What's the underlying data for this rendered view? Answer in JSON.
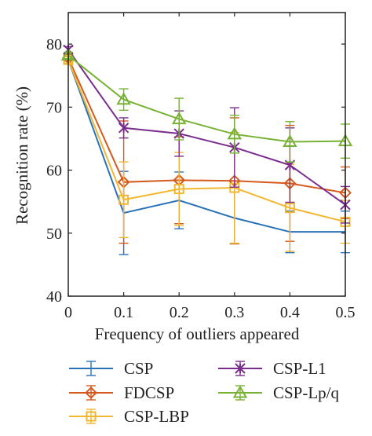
{
  "chart_data": {
    "type": "line",
    "xlabel": "Frequency of outliers appeared",
    "ylabel": "Recognition rate (%)",
    "xlim": [
      0,
      0.5
    ],
    "ylim": [
      40,
      85
    ],
    "x_ticks": [
      "0",
      "0.1",
      "0.2",
      "0.3",
      "0.4",
      "0.5"
    ],
    "y_ticks": [
      "40",
      "50",
      "60",
      "70",
      "80"
    ],
    "x": [
      0,
      0.1,
      0.2,
      0.3,
      0.4,
      0.5
    ],
    "grid": false,
    "legend_position": "bottom",
    "series": [
      {
        "name": "CSP",
        "color": "#2a72b8",
        "marker": "none",
        "values": [
          77.5,
          53.2,
          55.2,
          52.4,
          50.2,
          50.2
        ],
        "error": [
          0.5,
          6.6,
          4.5,
          4.1,
          3.3,
          3.3
        ]
      },
      {
        "name": "FDCSP",
        "color": "#d45a1e",
        "marker": "diamond",
        "values": [
          77.8,
          58.1,
          58.4,
          58.3,
          57.9,
          56.4
        ],
        "error": [
          0.5,
          9.7,
          6.9,
          10.0,
          9.2,
          4.1
        ]
      },
      {
        "name": "CSP-LBP",
        "color": "#f2b731",
        "marker": "square",
        "values": [
          77.5,
          55.3,
          57.0,
          57.2,
          54.0,
          51.8
        ],
        "error": [
          0.5,
          6.0,
          5.8,
          8.8,
          6.9,
          3.4
        ]
      },
      {
        "name": "CSP-L1",
        "color": "#7b2d8e",
        "marker": "x",
        "values": [
          79.1,
          66.7,
          65.8,
          63.6,
          60.8,
          54.5
        ],
        "error": [
          0.5,
          1.6,
          3.6,
          6.3,
          5.9,
          2.9
        ]
      },
      {
        "name": "CSP-Lp/q",
        "color": "#78b234",
        "marker": "triangle",
        "values": [
          78.2,
          71.2,
          68.1,
          65.7,
          64.5,
          64.6
        ],
        "error": [
          0.5,
          1.7,
          3.3,
          3.0,
          3.2,
          2.7
        ]
      }
    ]
  }
}
